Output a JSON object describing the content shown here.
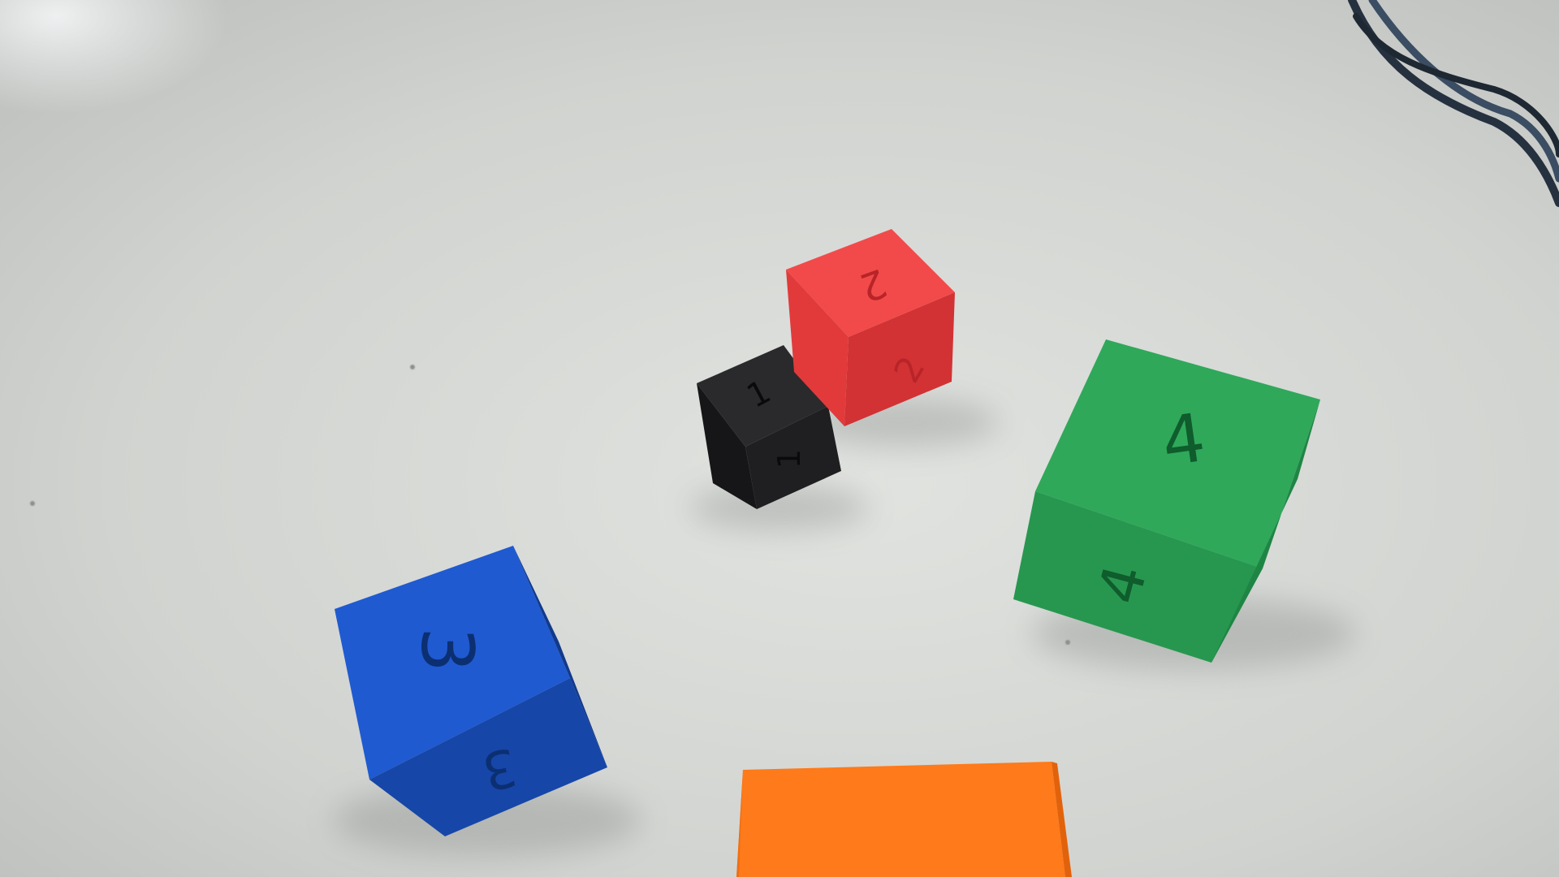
{
  "scene": {
    "description_free": true,
    "surface_color": "#d4d6d3",
    "surface_shadow_color": "#9da09d",
    "cable_color": "#2b3a4a",
    "cubes": [
      {
        "name": "black-cube",
        "label_top": "1",
        "label_side": "1",
        "colors": {
          "top": "#2a2a2c",
          "left": "#161618",
          "right": "#1f1f22"
        }
      },
      {
        "name": "red-cube",
        "label_top": "2",
        "label_side": "2",
        "colors": {
          "top": "#f24a4a",
          "left": "#e23a3b",
          "right": "#d23234"
        }
      },
      {
        "name": "blue-cube",
        "label_top": "3",
        "label_side": "3",
        "colors": {
          "top": "#1f5ad0",
          "left": "#1646a8",
          "right": "#123a8c"
        }
      },
      {
        "name": "green-cube",
        "label_top": "4",
        "label_side": "4",
        "colors": {
          "top": "#2fa85a",
          "left": "#27974f",
          "right": "#1f8545"
        }
      },
      {
        "name": "orange-block",
        "label_top": "",
        "label_side": "",
        "colors": {
          "top": "#ff7a1a",
          "left": "#f06e12",
          "right": "#e2620c"
        }
      }
    ]
  }
}
